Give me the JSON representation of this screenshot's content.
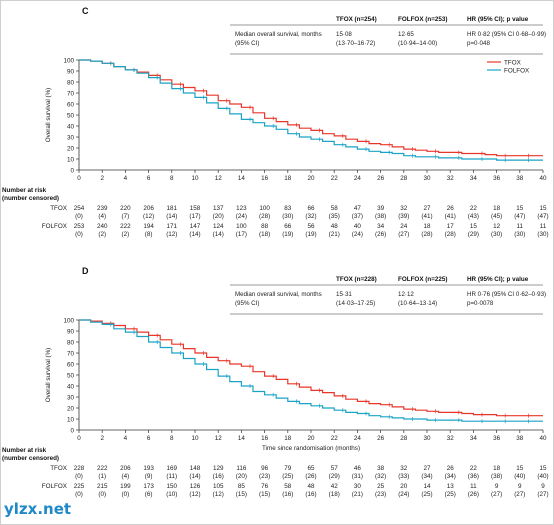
{
  "watermark": "ylzx.net",
  "chart_data": [
    {
      "type": "line",
      "panel_label": "C",
      "title": "",
      "xlabel": "",
      "ylabel": "Overall survival (%)",
      "xlim": [
        0,
        40
      ],
      "ylim": [
        0,
        100
      ],
      "x_ticks": [
        "0",
        "2",
        "4",
        "6",
        "8",
        "10",
        "12",
        "14",
        "16",
        "18",
        "20",
        "22",
        "24",
        "26",
        "28",
        "30",
        "32",
        "34",
        "36",
        "38",
        "40"
      ],
      "y_ticks": [
        "0",
        "10",
        "20",
        "30",
        "40",
        "50",
        "60",
        "70",
        "80",
        "90",
        "100"
      ],
      "legend": {
        "placement": "right",
        "entries": [
          "TFOX",
          "FOLFOX"
        ]
      },
      "stats_table": {
        "headers": [
          "",
          "TFOX (n=254)",
          "FOLFOX (n=253)",
          "HR (95% CI); p value"
        ],
        "row_label_1": "Median overall survival, months",
        "row_label_2": "(95% CI)",
        "tfox_median": "15·08",
        "tfox_ci": "(13·70–16·72)",
        "folfox_median": "12·65",
        "folfox_ci": "(10·94–14·00)",
        "hr": "HR 0·82 (95% CI 0·68–0·99)",
        "p": "p=0·048"
      },
      "at_risk": {
        "title_1": "Number at risk",
        "title_2": "(number censored)",
        "rows": [
          {
            "name": "TFOX",
            "counts": [
              "254",
              "239",
              "220",
              "206",
              "181",
              "158",
              "137",
              "123",
              "100",
              "83",
              "66",
              "58",
              "47",
              "39",
              "32",
              "27",
              "26",
              "22",
              "18",
              "15",
              "15"
            ],
            "censored": [
              "(0)",
              "(4)",
              "(7)",
              "(12)",
              "(14)",
              "(17)",
              "(20)",
              "(24)",
              "(28)",
              "(30)",
              "(32)",
              "(35)",
              "(37)",
              "(38)",
              "(39)",
              "(41)",
              "(41)",
              "(43)",
              "(45)",
              "(47)",
              "(47)"
            ]
          },
          {
            "name": "FOLFOX",
            "counts": [
              "253",
              "240",
              "222",
              "194",
              "171",
              "147",
              "124",
              "100",
              "88",
              "66",
              "56",
              "48",
              "40",
              "34",
              "24",
              "18",
              "17",
              "15",
              "12",
              "11",
              "11"
            ],
            "censored": [
              "(0)",
              "(2)",
              "(2)",
              "(8)",
              "(12)",
              "(14)",
              "(14)",
              "(17)",
              "(18)",
              "(19)",
              "(19)",
              "(21)",
              "(24)",
              "(26)",
              "(27)",
              "(28)",
              "(28)",
              "(29)",
              "(30)",
              "(30)",
              "(30)"
            ]
          }
        ]
      },
      "colors": {
        "TFOX": "#e8372a",
        "FOLFOX": "#1ba3c6"
      },
      "series": [
        {
          "name": "TFOX",
          "x": [
            0,
            1,
            2,
            3,
            4,
            5,
            6,
            7,
            8,
            9,
            10,
            11,
            12,
            13,
            14,
            15,
            16,
            17,
            18,
            19,
            20,
            21,
            22,
            23,
            24,
            25,
            26,
            27,
            28,
            29,
            30,
            31,
            32,
            33,
            34,
            35,
            36,
            37,
            38,
            39,
            40
          ],
          "y": [
            100,
            99,
            97,
            94,
            91,
            89,
            86,
            82,
            78,
            75,
            72,
            68,
            63,
            60,
            57,
            52,
            47,
            44,
            41,
            38,
            36,
            33,
            31,
            28,
            26,
            24,
            23,
            21,
            19,
            18,
            17,
            16,
            16,
            15,
            15,
            14,
            13,
            13,
            13,
            13,
            13
          ]
        },
        {
          "name": "FOLFOX",
          "x": [
            0,
            1,
            2,
            3,
            4,
            5,
            6,
            7,
            8,
            9,
            10,
            11,
            12,
            13,
            14,
            15,
            16,
            17,
            18,
            19,
            20,
            21,
            22,
            23,
            24,
            25,
            26,
            27,
            28,
            29,
            30,
            31,
            32,
            33,
            34,
            35,
            36,
            37,
            38,
            39,
            40
          ],
          "y": [
            100,
            99,
            97,
            94,
            91,
            88,
            84,
            79,
            74,
            70,
            66,
            61,
            56,
            51,
            46,
            43,
            40,
            37,
            33,
            30,
            28,
            26,
            23,
            21,
            19,
            17,
            16,
            15,
            13,
            12,
            12,
            11,
            11,
            10,
            10,
            10,
            9,
            9,
            9,
            9,
            9
          ]
        }
      ]
    },
    {
      "type": "line",
      "panel_label": "D",
      "title": "",
      "xlabel": "Time since randomisation (months)",
      "ylabel": "Overall survival (%)",
      "xlim": [
        0,
        40
      ],
      "ylim": [
        0,
        100
      ],
      "x_ticks": [
        "0",
        "2",
        "4",
        "6",
        "8",
        "10",
        "12",
        "14",
        "16",
        "18",
        "20",
        "22",
        "24",
        "26",
        "28",
        "30",
        "32",
        "34",
        "36",
        "38",
        "40"
      ],
      "y_ticks": [
        "0",
        "10",
        "20",
        "30",
        "40",
        "50",
        "60",
        "70",
        "80",
        "90",
        "100"
      ],
      "stats_table": {
        "headers": [
          "",
          "TFOX (n=228)",
          "FOLFOX (n=225)",
          "HR (95% CI); p value"
        ],
        "row_label_1": "Median overall survival, months",
        "row_label_2": "(95% CI)",
        "tfox_median": "15·31",
        "tfox_ci": "(14·03–17·25)",
        "folfox_median": "12·12",
        "folfox_ci": "(10·64–13·14)",
        "hr": "HR 0·76 (95% CI 0·62–0·93)",
        "p": "p=0·0078"
      },
      "at_risk": {
        "title_1": "Number at risk",
        "title_2": "(number censored)",
        "rows": [
          {
            "name": "TFOX",
            "counts": [
              "228",
              "222",
              "206",
              "193",
              "169",
              "148",
              "129",
              "116",
              "96",
              "79",
              "65",
              "57",
              "46",
              "38",
              "32",
              "27",
              "26",
              "22",
              "18",
              "15",
              "15"
            ],
            "censored": [
              "(0)",
              "(1)",
              "(4)",
              "(9)",
              "(11)",
              "(14)",
              "(16)",
              "(20)",
              "(23)",
              "(25)",
              "(26)",
              "(29)",
              "(31)",
              "(32)",
              "(33)",
              "(34)",
              "(34)",
              "(36)",
              "(38)",
              "(40)",
              "(40)"
            ]
          },
          {
            "name": "FOLFOX",
            "counts": [
              "225",
              "215",
              "199",
              "173",
              "150",
              "126",
              "105",
              "85",
              "76",
              "58",
              "48",
              "42",
              "30",
              "25",
              "20",
              "14",
              "13",
              "11",
              "9",
              "9",
              "9"
            ],
            "censored": [
              "(0)",
              "(0)",
              "(0)",
              "(6)",
              "(10)",
              "(12)",
              "(12)",
              "(15)",
              "(15)",
              "(16)",
              "(16)",
              "(18)",
              "(21)",
              "(23)",
              "(24)",
              "(25)",
              "(25)",
              "(26)",
              "(27)",
              "(27)",
              "(27)"
            ]
          }
        ]
      },
      "colors": {
        "TFOX": "#e8372a",
        "FOLFOX": "#1ba3c6"
      },
      "series": [
        {
          "name": "TFOX",
          "x": [
            0,
            1,
            2,
            3,
            4,
            5,
            6,
            7,
            8,
            9,
            10,
            11,
            12,
            13,
            14,
            15,
            16,
            17,
            18,
            19,
            20,
            21,
            22,
            23,
            24,
            25,
            26,
            27,
            28,
            29,
            30,
            31,
            32,
            33,
            34,
            35,
            36,
            37,
            38,
            39,
            40
          ],
          "y": [
            100,
            99,
            97,
            95,
            92,
            89,
            86,
            82,
            78,
            74,
            70,
            66,
            63,
            60,
            58,
            53,
            49,
            46,
            42,
            39,
            36,
            34,
            31,
            28,
            26,
            24,
            23,
            21,
            19,
            18,
            17,
            16,
            16,
            15,
            14,
            14,
            13,
            13,
            13,
            13,
            13
          ]
        },
        {
          "name": "FOLFOX",
          "x": [
            0,
            1,
            2,
            3,
            4,
            5,
            6,
            7,
            8,
            9,
            10,
            11,
            12,
            13,
            14,
            15,
            16,
            17,
            18,
            19,
            20,
            21,
            22,
            23,
            24,
            25,
            26,
            27,
            28,
            29,
            30,
            31,
            32,
            33,
            34,
            35,
            36,
            37,
            38,
            39,
            40
          ],
          "y": [
            100,
            98,
            96,
            92,
            89,
            85,
            80,
            75,
            70,
            65,
            60,
            55,
            49,
            44,
            40,
            35,
            32,
            29,
            26,
            24,
            22,
            20,
            18,
            16,
            15,
            13,
            12,
            11,
            10,
            10,
            9,
            9,
            9,
            8,
            8,
            8,
            8,
            8,
            8,
            8,
            8
          ]
        }
      ]
    }
  ]
}
